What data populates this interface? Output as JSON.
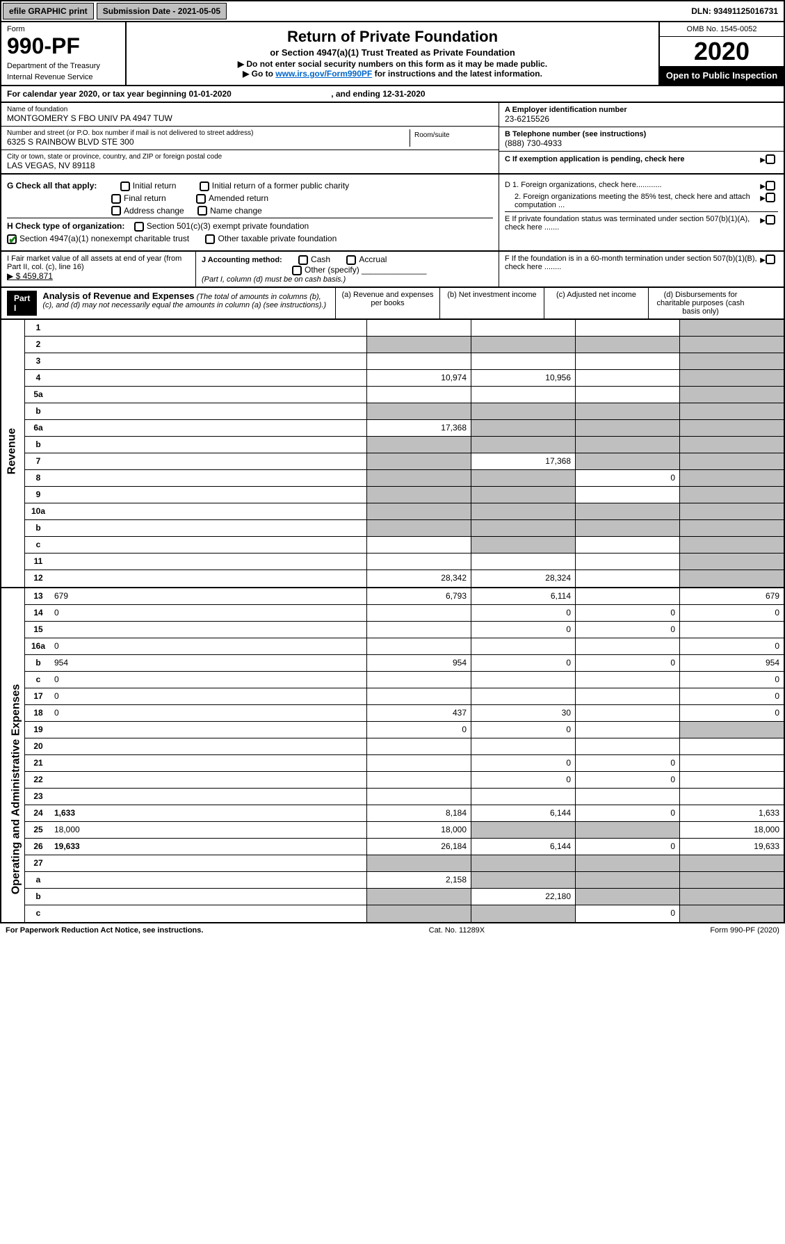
{
  "topbar": {
    "efile": "efile GRAPHIC print",
    "submission": "Submission Date - 2021-05-05",
    "dln": "DLN: 93491125016731"
  },
  "header": {
    "form_label": "Form",
    "form_number": "990-PF",
    "dept1": "Department of the Treasury",
    "dept2": "Internal Revenue Service",
    "title": "Return of Private Foundation",
    "subtitle": "or Section 4947(a)(1) Trust Treated as Private Foundation",
    "instr1": "▶ Do not enter social security numbers on this form as it may be made public.",
    "instr2_pre": "▶ Go to ",
    "instr2_link": "www.irs.gov/Form990PF",
    "instr2_post": " for instructions and the latest information.",
    "omb": "OMB No. 1545-0052",
    "year": "2020",
    "open_public": "Open to Public Inspection"
  },
  "calyear": {
    "text_pre": "For calendar year 2020, or tax year beginning ",
    "begin": "01-01-2020",
    "text_mid": " , and ending ",
    "end": "12-31-2020"
  },
  "entity": {
    "name_label": "Name of foundation",
    "name": "MONTGOMERY S FBO UNIV PA 4947 TUW",
    "addr_label": "Number and street (or P.O. box number if mail is not delivered to street address)",
    "addr": "6325 S RAINBOW BLVD STE 300",
    "room_label": "Room/suite",
    "city_label": "City or town, state or province, country, and ZIP or foreign postal code",
    "city": "LAS VEGAS, NV  89118",
    "ein_label": "A Employer identification number",
    "ein": "23-6215526",
    "tel_label": "B Telephone number (see instructions)",
    "tel": "(888) 730-4933",
    "c_label": "C If exemption application is pending, check here"
  },
  "checks": {
    "g_label": "G Check all that apply:",
    "g_opts": [
      "Initial return",
      "Initial return of a former public charity",
      "Final return",
      "Amended return",
      "Address change",
      "Name change"
    ],
    "h_label": "H Check type of organization:",
    "h_501c3": "Section 501(c)(3) exempt private foundation",
    "h_4947": "Section 4947(a)(1) nonexempt charitable trust",
    "h_other": "Other taxable private foundation",
    "d1": "D 1. Foreign organizations, check here............",
    "d2": "2. Foreign organizations meeting the 85% test, check here and attach computation ...",
    "e": "E If private foundation status was terminated under section 507(b)(1)(A), check here .......",
    "f": "F If the foundation is in a 60-month termination under section 507(b)(1)(B), check here ........"
  },
  "fmv": {
    "i_label": "I Fair market value of all assets at end of year (from Part II, col. (c), line 16)",
    "i_value": "▶ $  459,871",
    "j_label": "J Accounting method:",
    "j_cash": "Cash",
    "j_accrual": "Accrual",
    "j_other": "Other (specify)",
    "j_note": "(Part I, column (d) must be on cash basis.)"
  },
  "analysis": {
    "part": "Part I",
    "title": "Analysis of Revenue and Expenses",
    "subtitle": "(The total of amounts in columns (b), (c), and (d) may not necessarily equal the amounts in column (a) (see instructions).)",
    "col_a": "(a) Revenue and expenses per books",
    "col_b": "(b) Net investment income",
    "col_c": "(c) Adjusted net income",
    "col_d": "(d) Disbursements for charitable purposes (cash basis only)"
  },
  "sidelabels": {
    "revenue": "Revenue",
    "expenses": "Operating and Administrative Expenses"
  },
  "rows": [
    {
      "n": "1",
      "d": "",
      "a": "",
      "b": "",
      "c": "",
      "shade_d": true
    },
    {
      "n": "2",
      "d": "",
      "a": "",
      "b": "",
      "c": "",
      "shade_all": true,
      "shade_d": true,
      "shade_b": true,
      "shade_c": true,
      "shade_a": true,
      "no_a": true
    },
    {
      "n": "3",
      "d": "",
      "a": "",
      "b": "",
      "c": "",
      "shade_d": true
    },
    {
      "n": "4",
      "d": "",
      "a": "10,974",
      "b": "10,956",
      "c": "",
      "shade_d": true
    },
    {
      "n": "5a",
      "d": "",
      "a": "",
      "b": "",
      "c": "",
      "shade_d": true
    },
    {
      "n": "b",
      "d": "",
      "a": "",
      "b": "",
      "c": "",
      "shade_a": true,
      "shade_b": true,
      "shade_c": true,
      "shade_d": true
    },
    {
      "n": "6a",
      "d": "",
      "a": "17,368",
      "b": "",
      "c": "",
      "shade_b": true,
      "shade_c": true,
      "shade_d": true
    },
    {
      "n": "b",
      "d": "",
      "a": "",
      "b": "",
      "c": "",
      "shade_a": true,
      "shade_b": true,
      "shade_c": true,
      "shade_d": true
    },
    {
      "n": "7",
      "d": "",
      "a": "",
      "b": "17,368",
      "c": "",
      "shade_a": true,
      "shade_c": true,
      "shade_d": true
    },
    {
      "n": "8",
      "d": "",
      "a": "",
      "b": "",
      "c": "0",
      "shade_a": true,
      "shade_b": true,
      "shade_d": true
    },
    {
      "n": "9",
      "d": "",
      "a": "",
      "b": "",
      "c": "",
      "shade_a": true,
      "shade_b": true,
      "shade_d": true
    },
    {
      "n": "10a",
      "d": "",
      "a": "",
      "b": "",
      "c": "",
      "shade_a": true,
      "shade_b": true,
      "shade_c": true,
      "shade_d": true
    },
    {
      "n": "b",
      "d": "",
      "a": "",
      "b": "",
      "c": "",
      "shade_a": true,
      "shade_b": true,
      "shade_c": true,
      "shade_d": true
    },
    {
      "n": "c",
      "d": "",
      "a": "",
      "b": "",
      "c": "",
      "shade_b": true,
      "shade_d": true
    },
    {
      "n": "11",
      "d": "",
      "a": "",
      "b": "",
      "c": "",
      "shade_d": true
    },
    {
      "n": "12",
      "d": "",
      "a": "28,342",
      "b": "28,324",
      "c": "",
      "shade_d": true,
      "bold": true
    }
  ],
  "exp_rows": [
    {
      "n": "13",
      "d": "679",
      "a": "6,793",
      "b": "6,114",
      "c": ""
    },
    {
      "n": "14",
      "d": "0",
      "a": "",
      "b": "0",
      "c": "0"
    },
    {
      "n": "15",
      "d": "",
      "a": "",
      "b": "0",
      "c": "0"
    },
    {
      "n": "16a",
      "d": "0",
      "a": "",
      "b": "",
      "c": ""
    },
    {
      "n": "b",
      "d": "954",
      "a": "954",
      "b": "0",
      "c": "0"
    },
    {
      "n": "c",
      "d": "0",
      "a": "",
      "b": "",
      "c": ""
    },
    {
      "n": "17",
      "d": "0",
      "a": "",
      "b": "",
      "c": ""
    },
    {
      "n": "18",
      "d": "0",
      "a": "437",
      "b": "30",
      "c": ""
    },
    {
      "n": "19",
      "d": "",
      "a": "0",
      "b": "0",
      "c": "",
      "shade_d": true
    },
    {
      "n": "20",
      "d": "",
      "a": "",
      "b": "",
      "c": ""
    },
    {
      "n": "21",
      "d": "",
      "a": "",
      "b": "0",
      "c": "0"
    },
    {
      "n": "22",
      "d": "",
      "a": "",
      "b": "0",
      "c": "0"
    },
    {
      "n": "23",
      "d": "",
      "a": "",
      "b": "",
      "c": ""
    },
    {
      "n": "24",
      "d": "1,633",
      "a": "8,184",
      "b": "6,144",
      "c": "0",
      "bold": true
    },
    {
      "n": "25",
      "d": "18,000",
      "a": "18,000",
      "b": "",
      "c": "",
      "shade_b": true,
      "shade_c": true
    },
    {
      "n": "26",
      "d": "19,633",
      "a": "26,184",
      "b": "6,144",
      "c": "0",
      "bold": true
    },
    {
      "n": "27",
      "d": "",
      "a": "",
      "b": "",
      "c": "",
      "shade_a": true,
      "shade_b": true,
      "shade_c": true,
      "shade_d": true
    },
    {
      "n": "a",
      "d": "",
      "a": "2,158",
      "b": "",
      "c": "",
      "shade_b": true,
      "shade_c": true,
      "shade_d": true,
      "bold": true
    },
    {
      "n": "b",
      "d": "",
      "a": "",
      "b": "22,180",
      "c": "",
      "shade_a": true,
      "shade_c": true,
      "shade_d": true,
      "bold": true
    },
    {
      "n": "c",
      "d": "",
      "a": "",
      "b": "",
      "c": "0",
      "shade_a": true,
      "shade_b": true,
      "shade_d": true,
      "bold": true
    }
  ],
  "footer": {
    "left": "For Paperwork Reduction Act Notice, see instructions.",
    "center": "Cat. No. 11289X",
    "right": "Form 990-PF (2020)"
  }
}
